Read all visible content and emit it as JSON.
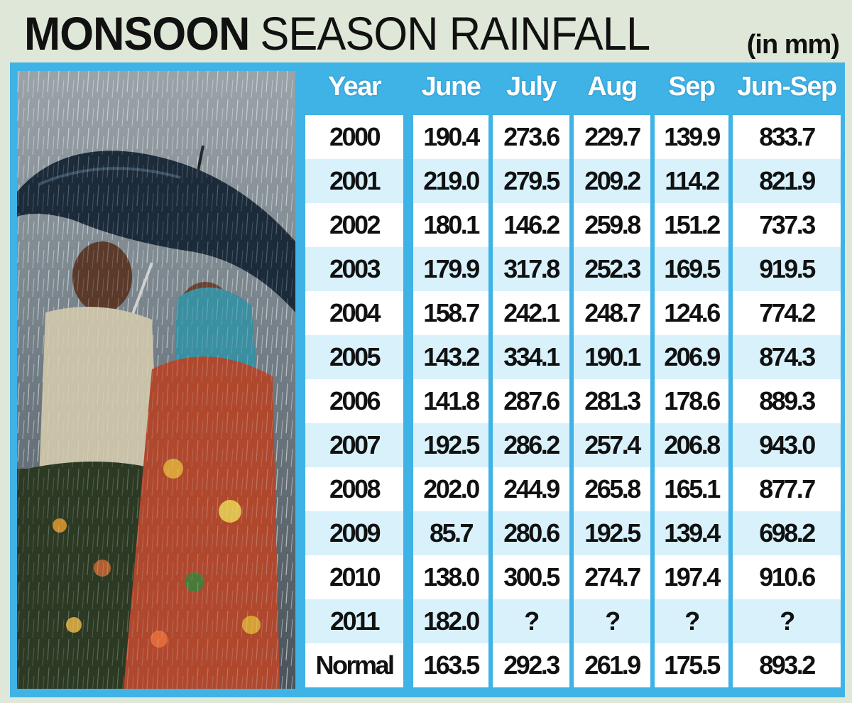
{
  "title": {
    "bold": "MONSOON",
    "regular": "SEASON RAINFALL"
  },
  "unit": "(in mm)",
  "colors": {
    "frame": "#3fb2e6",
    "header_text": "#ffffff",
    "band_light": "#ffffff",
    "band_tint": "#d8f1fb"
  },
  "chart_data": {
    "type": "table",
    "columns": [
      "Year",
      "June",
      "July",
      "Aug",
      "Sep",
      "Jun-Sep"
    ],
    "rows": [
      [
        "2000",
        "190.4",
        "273.6",
        "229.7",
        "139.9",
        "833.7"
      ],
      [
        "2001",
        "219.0",
        "279.5",
        "209.2",
        "114.2",
        "821.9"
      ],
      [
        "2002",
        "180.1",
        "146.2",
        "259.8",
        "151.2",
        "737.3"
      ],
      [
        "2003",
        "179.9",
        "317.8",
        "252.3",
        "169.5",
        "919.5"
      ],
      [
        "2004",
        "158.7",
        "242.1",
        "248.7",
        "124.6",
        "774.2"
      ],
      [
        "2005",
        "143.2",
        "334.1",
        "190.1",
        "206.9",
        "874.3"
      ],
      [
        "2006",
        "141.8",
        "287.6",
        "281.3",
        "178.6",
        "889.3"
      ],
      [
        "2007",
        "192.5",
        "286.2",
        "257.4",
        "206.8",
        "943.0"
      ],
      [
        "2008",
        "202.0",
        "244.9",
        "265.8",
        "165.1",
        "877.7"
      ],
      [
        "2009",
        "85.7",
        "280.6",
        "192.5",
        "139.4",
        "698.2"
      ],
      [
        "2010",
        "138.0",
        "300.5",
        "274.7",
        "197.4",
        "910.6"
      ],
      [
        "2011",
        "182.0",
        "?",
        "?",
        "?",
        "?"
      ],
      [
        "Normal",
        "163.5",
        "292.3",
        "261.9",
        "175.5",
        "893.2"
      ]
    ]
  }
}
